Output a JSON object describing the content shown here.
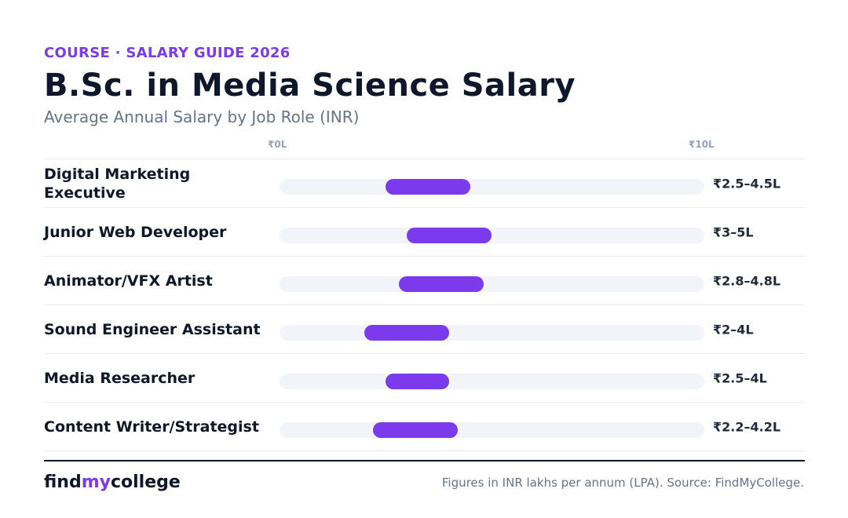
{
  "header": {
    "eyebrow": "COURSE · SALARY GUIDE 2026",
    "title": "B.Sc. in Media Science Salary",
    "subtitle": "Average Annual Salary by Job Role (INR)"
  },
  "colors": {
    "accent": "#7c3aed",
    "track": "#f1f4f8",
    "title": "#0f172a",
    "muted": "#64748b"
  },
  "chart_data": {
    "type": "bar",
    "orientation": "horizontal-range",
    "title": "B.Sc. in Media Science Salary",
    "subtitle": "Average Annual Salary by Job Role (INR)",
    "xlim": [
      0,
      10
    ],
    "unit": "INR lakhs per annum",
    "axis_min_label": "₹0L",
    "axis_max_label": "₹10L",
    "grid": false,
    "categories": [
      "Digital Marketing Executive",
      "Junior Web Developer",
      "Animator/VFX Artist",
      "Sound Engineer Assistant",
      "Media Researcher",
      "Content Writer/Strategist"
    ],
    "rows": [
      {
        "role": "Digital Marketing Executive",
        "min": 2.5,
        "max": 4.5,
        "label": "₹2.5–4.5L"
      },
      {
        "role": "Junior Web Developer",
        "min": 3,
        "max": 5,
        "label": "₹3–5L"
      },
      {
        "role": "Animator/VFX Artist",
        "min": 2.8,
        "max": 4.8,
        "label": "₹2.8–4.8L"
      },
      {
        "role": "Sound Engineer Assistant",
        "min": 2,
        "max": 4,
        "label": "₹2–4L"
      },
      {
        "role": "Media Researcher",
        "min": 2.5,
        "max": 4,
        "label": "₹2.5–4L"
      },
      {
        "role": "Content Writer/Strategist",
        "min": 2.2,
        "max": 4.2,
        "label": "₹2.2–4.2L"
      }
    ]
  },
  "footer": {
    "logo_part1": "find",
    "logo_part2": "my",
    "logo_part3": "college",
    "source": "Figures in INR lakhs per annum (LPA). Source: FindMyCollege."
  }
}
